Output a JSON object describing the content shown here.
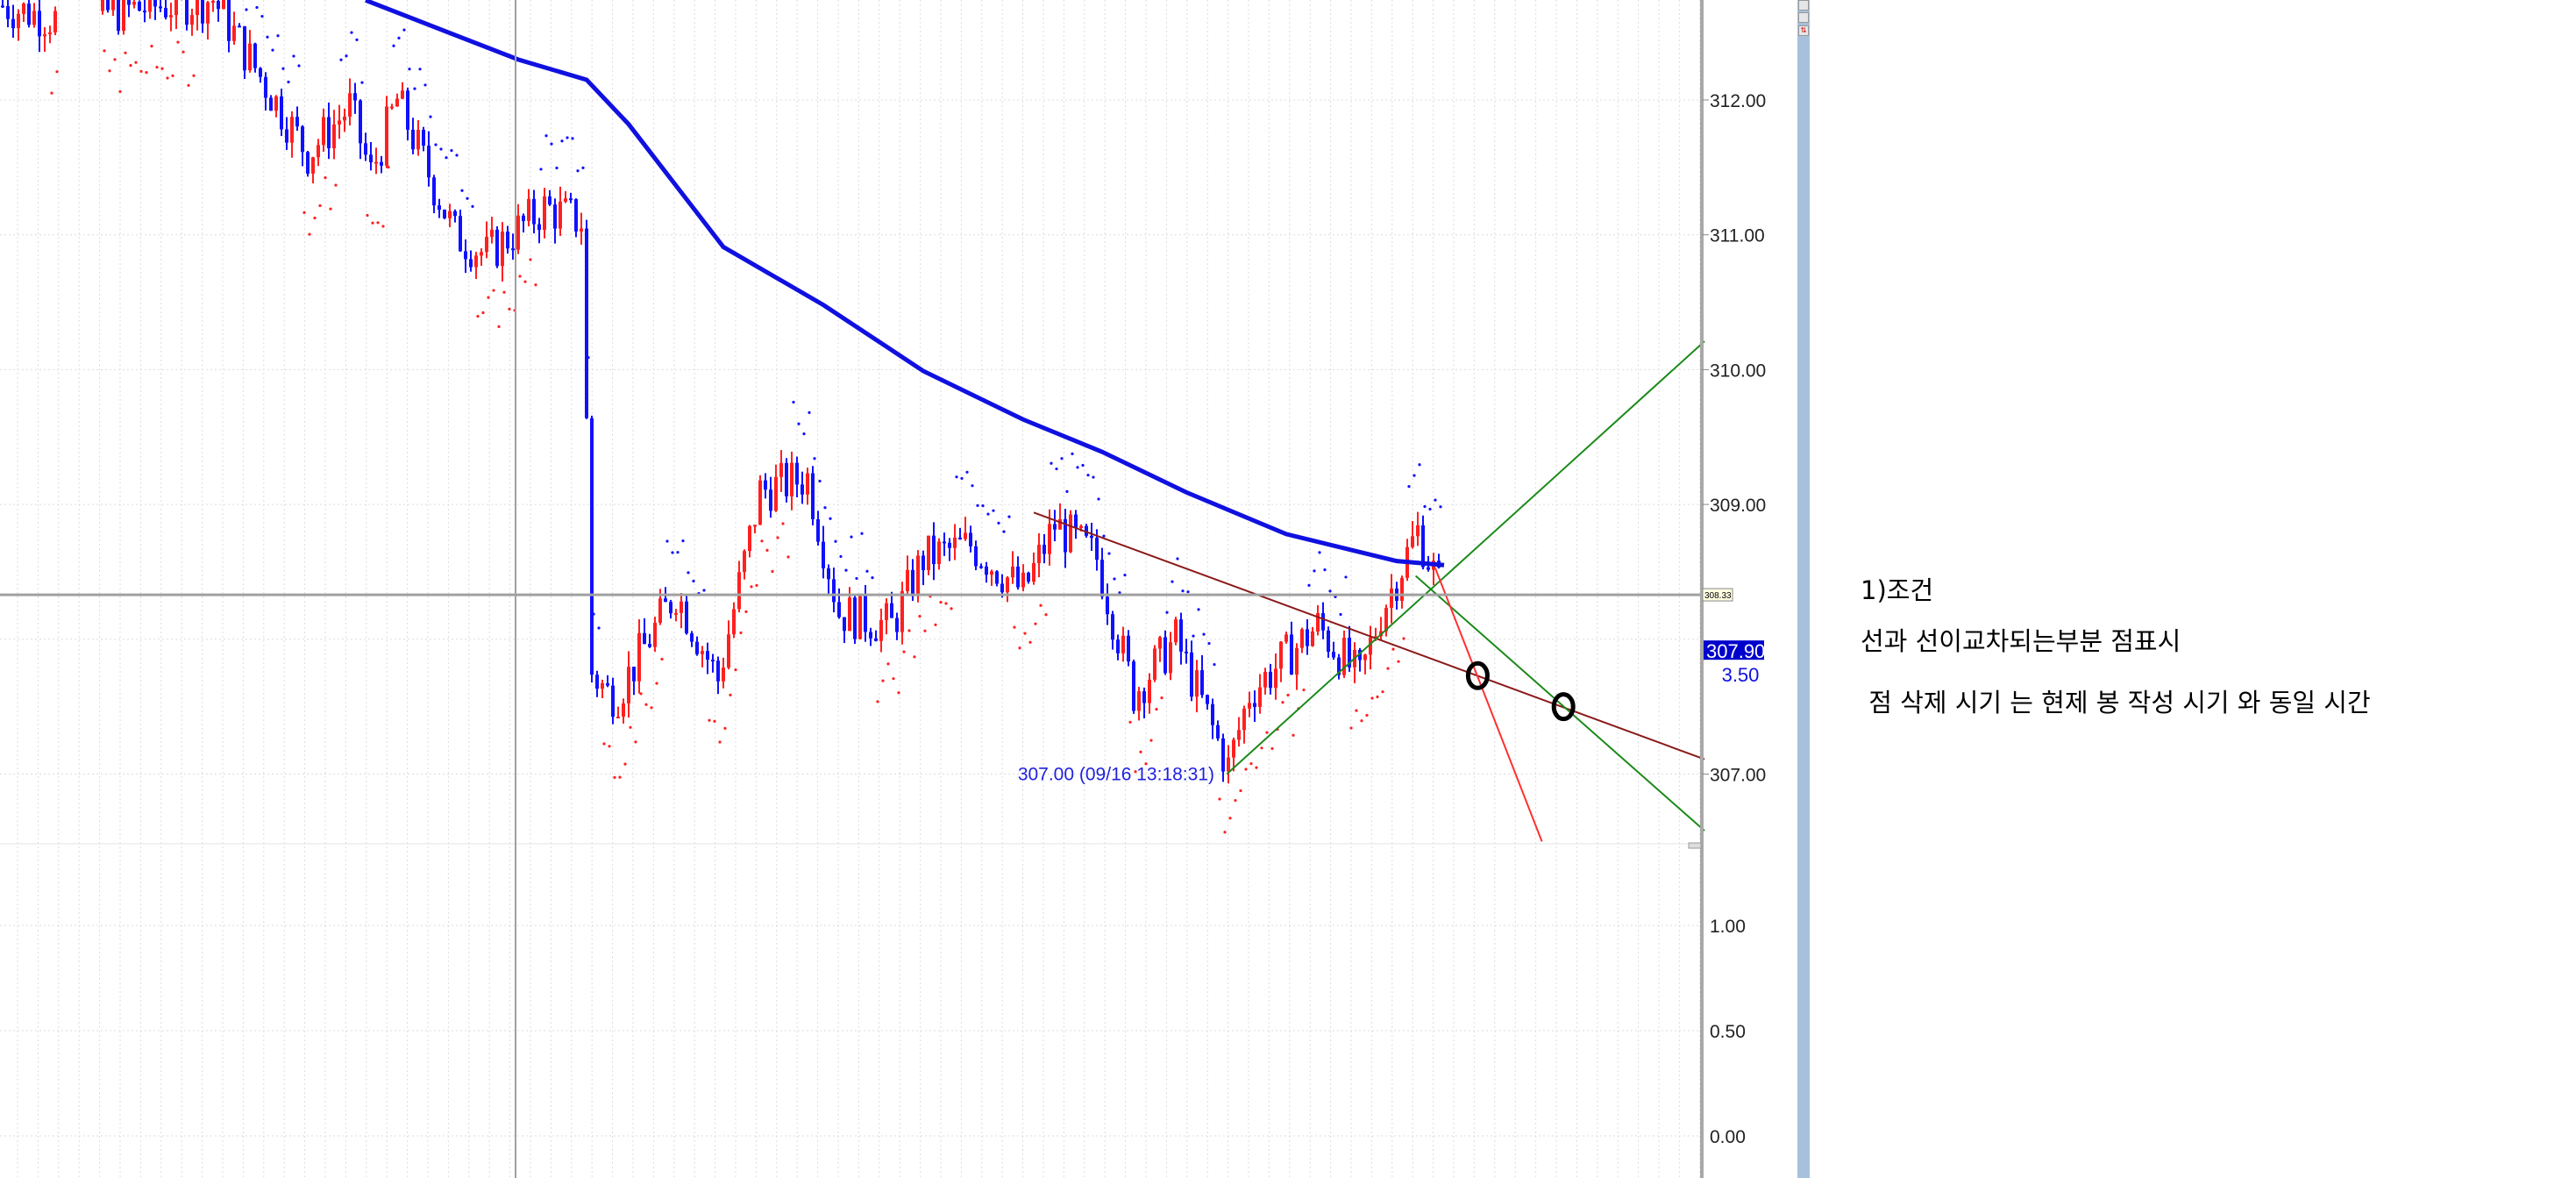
{
  "chart_data": {
    "type": "candlestick",
    "price_axis": {
      "ticks": [
        "312.00",
        "311.00",
        "310.00",
        "309.00",
        "307.00"
      ],
      "tick_values": [
        312,
        311,
        310,
        309,
        307
      ],
      "range": [
        306.35,
        312.74
      ]
    },
    "sub_axis": {
      "ticks": [
        "1.00",
        "0.50",
        "0.00"
      ],
      "tick_values": [
        1,
        0.5,
        0
      ],
      "range": [
        -0.2,
        1.3
      ]
    },
    "grid": true,
    "colors": {
      "up": "#ff2020",
      "down": "#1010ff",
      "ma": "#1010e0",
      "trend_brown": "#8b1a1a",
      "trend_green": "#1a8a1a",
      "trend_red": "#ff3030",
      "crosshair": "#a0a0a0",
      "price_tag": "#0000cc"
    },
    "price_path": [
      [
        0,
        312.7
      ],
      [
        10,
        312.6
      ],
      [
        40,
        312.75
      ],
      [
        58,
        311.6
      ],
      [
        66,
        311.95
      ],
      [
        70,
        311.45
      ],
      [
        75,
        312.0
      ],
      [
        86,
        311.0
      ],
      [
        92,
        310.85
      ],
      [
        103,
        311.2
      ],
      [
        110,
        311.1
      ],
      [
        111,
        309.6
      ],
      [
        112,
        307.75
      ],
      [
        115,
        307.6
      ],
      [
        117,
        307.6
      ],
      [
        128,
        308.35
      ],
      [
        136,
        307.7
      ],
      [
        144,
        309.1
      ],
      [
        153,
        309.2
      ],
      [
        159,
        308.2
      ],
      [
        169,
        308.1
      ],
      [
        175,
        308.6
      ],
      [
        184,
        308.7
      ],
      [
        194,
        308.35
      ],
      [
        200,
        308.85
      ],
      [
        208,
        308.6
      ],
      [
        215,
        307.6
      ],
      [
        223,
        308.0
      ],
      [
        233,
        307.05
      ],
      [
        237,
        307.6
      ],
      [
        250,
        308.1
      ],
      [
        258,
        307.7
      ],
      [
        262,
        308.2
      ],
      [
        269,
        308.8
      ],
      [
        273,
        308.4
      ]
    ],
    "ma_line": [
      [
        69,
        312.74
      ],
      [
        98,
        312.3
      ],
      [
        111,
        312.15
      ],
      [
        119,
        311.82
      ],
      [
        137,
        310.91
      ],
      [
        156,
        310.48
      ],
      [
        175,
        309.99
      ],
      [
        194,
        309.63
      ],
      [
        209,
        309.39
      ],
      [
        225,
        309.09
      ],
      [
        244,
        308.78
      ],
      [
        265,
        308.58
      ],
      [
        274,
        308.55
      ]
    ],
    "trendlines": [
      {
        "color": "brown",
        "from": [
          196,
          308.94
        ],
        "to": [
          323.5,
          307.11
        ]
      },
      {
        "color": "green",
        "from": [
          232.7,
          307.0
        ],
        "to": [
          323.5,
          310.21
        ]
      },
      {
        "color": "green",
        "from": [
          268.6,
          308.47
        ],
        "to": [
          323.5,
          306.58
        ]
      },
      {
        "color": "red",
        "from": [
          272.3,
          308.53
        ],
        "to": [
          292.6,
          306.5
        ]
      }
    ],
    "markers": [
      {
        "shape": "circle",
        "at": [
          280.4,
          307.73
        ]
      },
      {
        "shape": "circle",
        "at": [
          296.7,
          307.5
        ]
      }
    ],
    "crosshair": {
      "price_label": "308.33",
      "price": 308.33,
      "bar": 97.5
    },
    "current_price": {
      "label": "307.90",
      "price": 307.9
    },
    "sub_value": {
      "label": "3.50"
    },
    "low_annotation": {
      "text": "307.00 (09/16 13:18:31)",
      "bar": 233,
      "price": 307.0
    }
  },
  "notes": {
    "title": "1)조건",
    "line1": "선과 선이교차되는부분 점표시",
    "line2": " 점 삭제 시기 는 현제 봉 작성 시기 와 동일 시간"
  }
}
